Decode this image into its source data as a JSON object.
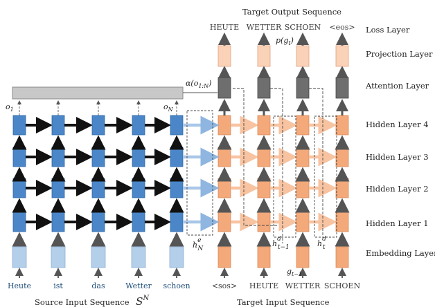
{
  "title_top": "Target Output Sequence",
  "title_bottom_left": "Source Input Sequence",
  "title_bottom_left_symbol": "S",
  "title_bottom_left_sup": "N",
  "title_bottom_right": "Target Input Sequence",
  "layer_labels": {
    "loss": "Loss Layer",
    "projection": "Projection Layer",
    "attention": "Attention Layer",
    "hidden4": "Hidden Layer 4",
    "hidden3": "Hidden Layer 3",
    "hidden2": "Hidden Layer 2",
    "hidden1": "Hidden Layer 1",
    "embedding": "Embedding Layer"
  },
  "source_words": [
    "Heute",
    "ist",
    "das",
    "Wetter",
    "schoen"
  ],
  "target_input_words": [
    "<sos>",
    "HEUTE",
    "WETTER",
    "SCHOEN"
  ],
  "target_output_words": [
    "HEUTE",
    "WETTER",
    "SCHOEN",
    "<eos>"
  ],
  "math_labels": {
    "o1": "o",
    "o1_sub": "1",
    "oN": "o",
    "oN_sub": "N",
    "alpha": "α(o",
    "alpha_sub": "1:N",
    "alpha_close": ")",
    "p": "p(g",
    "p_sub": "t",
    "p_close": ")",
    "hN": "h",
    "hN_sup": "e",
    "hN_sub": "N",
    "ht1": "h",
    "ht1_sup": "d",
    "ht1_sub": "t−1",
    "ht": "h",
    "ht_sup": "d",
    "ht_sub": "t",
    "g": "g",
    "g_sub": "t−1"
  },
  "colors": {
    "encoder_blue": "#4a86c8",
    "encoder_embed": "#b4cfe9",
    "decoder_orange": "#f3a97a",
    "decoder_light": "#f9d2b8",
    "attention_gray": "#6e6e6e",
    "attention_bar": "#c8c8c8"
  }
}
